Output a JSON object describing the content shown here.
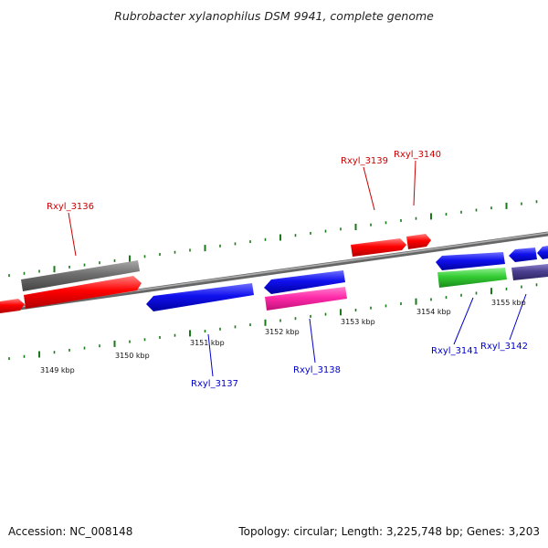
{
  "title": "Rubrobacter xylanophilus DSM 9941, complete genome",
  "footer": {
    "accession": "Accession: NC_008148",
    "summary": "Topology: circular; Length: 3,225,748 bp; Genes: 3,203"
  },
  "colors": {
    "forward_label": "#cc0000",
    "reverse_label": "#0000cc",
    "tick": "#1a7a1a",
    "backbone": "#888888"
  },
  "ruler_labels": [
    {
      "text": "3149 kbp",
      "kbp": 3149
    },
    {
      "text": "3150 kbp",
      "kbp": 3150
    },
    {
      "text": "3151 kbp",
      "kbp": 3151
    },
    {
      "text": "3152 kbp",
      "kbp": 3152
    },
    {
      "text": "3153 kbp",
      "kbp": 3153
    },
    {
      "text": "3154 kbp",
      "kbp": 3154
    },
    {
      "text": "3155 kbp",
      "kbp": 3155
    }
  ],
  "gene_labels": [
    {
      "text": "Rxyl_3136",
      "strand": "forward"
    },
    {
      "text": "Rxyl_3137",
      "strand": "reverse"
    },
    {
      "text": "Rxyl_3138",
      "strand": "reverse"
    },
    {
      "text": "Rxyl_3139",
      "strand": "forward"
    },
    {
      "text": "Rxyl_3140",
      "strand": "forward"
    },
    {
      "text": "Rxyl_3141",
      "strand": "reverse"
    },
    {
      "text": "Rxyl_3142",
      "strand": "reverse"
    }
  ]
}
